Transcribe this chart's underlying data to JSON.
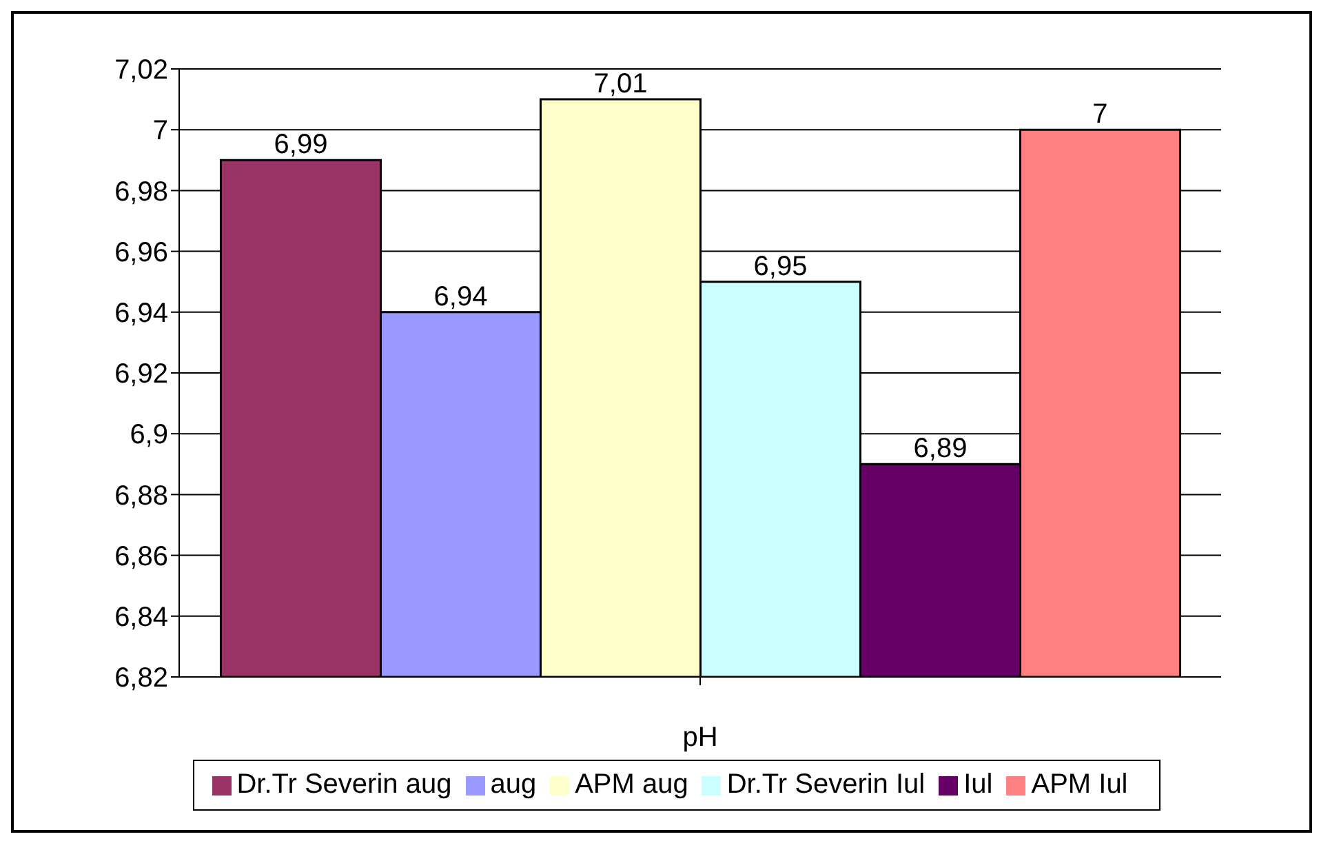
{
  "chart_data": {
    "type": "bar",
    "xlabel": "pH",
    "categories": [
      null
    ],
    "series": [
      {
        "name": "Dr.Tr Severin aug",
        "color": "#993366",
        "values": [
          6.99
        ],
        "value_labels": [
          "6,99"
        ]
      },
      {
        "name": "aug",
        "color": "#9999ff",
        "values": [
          6.94
        ],
        "value_labels": [
          "6,94"
        ]
      },
      {
        "name": "APM aug",
        "color": "#ffffcc",
        "values": [
          7.01
        ],
        "value_labels": [
          "7,01"
        ]
      },
      {
        "name": "Dr.Tr Severin Iul",
        "color": "#ccffff",
        "values": [
          6.95
        ],
        "value_labels": [
          "6,95"
        ]
      },
      {
        "name": "Iul",
        "color": "#660066",
        "values": [
          6.89
        ],
        "value_labels": [
          "6,89"
        ]
      },
      {
        "name": "APM Iul",
        "color": "#ff8080",
        "values": [
          7.0
        ],
        "value_labels": [
          "7"
        ]
      }
    ],
    "ylim": [
      6.82,
      7.02
    ],
    "yticks": [
      {
        "value": 6.82,
        "label": "6,82"
      },
      {
        "value": 6.84,
        "label": "6,84"
      },
      {
        "value": 6.86,
        "label": "6,86"
      },
      {
        "value": 6.88,
        "label": "6,88"
      },
      {
        "value": 6.9,
        "label": "6,9"
      },
      {
        "value": 6.92,
        "label": "6,92"
      },
      {
        "value": 6.94,
        "label": "6,94"
      },
      {
        "value": 6.96,
        "label": "6,96"
      },
      {
        "value": 6.98,
        "label": "6,98"
      },
      {
        "value": 7.0,
        "label": "7"
      },
      {
        "value": 7.02,
        "label": "7,02"
      }
    ],
    "grid": "y",
    "legend": "bottom"
  }
}
